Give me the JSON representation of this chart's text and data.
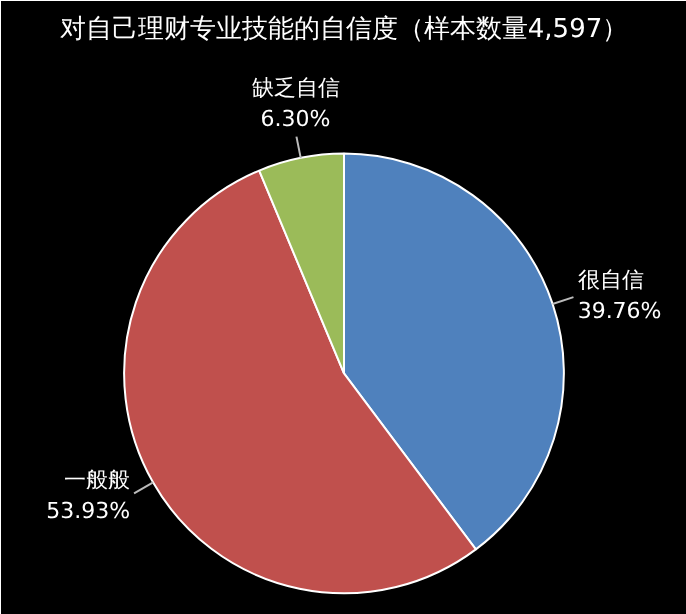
{
  "chart_data": {
    "type": "pie",
    "title": "对自己理财专业技能的自信度（样本数量4,597）",
    "categories": [
      "很自信",
      "一般般",
      "缺乏自信"
    ],
    "values": [
      39.76,
      53.93,
      6.3
    ],
    "value_labels": [
      "39.76%",
      "53.93%",
      "6.30%"
    ],
    "colors": [
      "#4f81bd",
      "#c0504d",
      "#9bbb59"
    ]
  }
}
